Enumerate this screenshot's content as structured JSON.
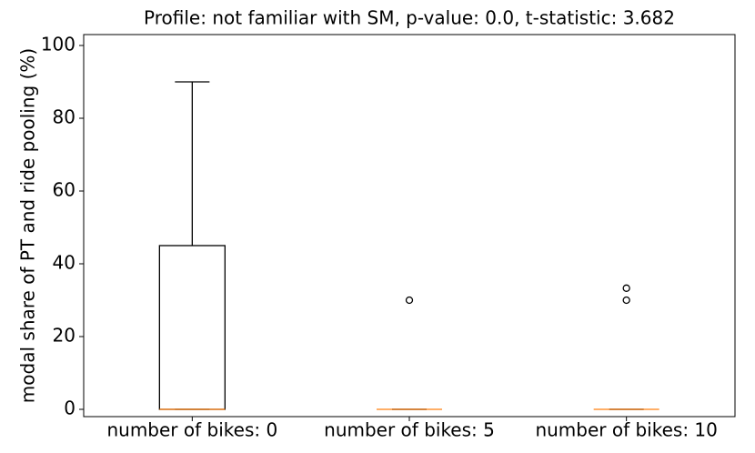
{
  "chart_data": {
    "type": "box",
    "title": "Profile: not familiar with SM, p-value: 0.0, t-statistic: 3.682",
    "y_label": "modal share of PT and ride pooling (%)",
    "categories": [
      "number of bikes: 0",
      "number of bikes: 5",
      "number of bikes: 10"
    ],
    "boxes": [
      {
        "min": 0,
        "q1": 0,
        "median": 0,
        "q3": 45,
        "max": 90,
        "outliers": []
      },
      {
        "min": 0,
        "q1": 0,
        "median": 0,
        "q3": 0,
        "max": 0,
        "outliers": [
          30
        ]
      },
      {
        "min": 0,
        "q1": 0,
        "median": 0,
        "q3": 0,
        "max": 0,
        "outliers": [
          30,
          33.3
        ]
      }
    ],
    "box_color": "#000000",
    "median_color": "#ff7f0e",
    "ylim": [
      -2,
      103
    ],
    "yticks": [
      0,
      20,
      40,
      60,
      80,
      100
    ]
  }
}
